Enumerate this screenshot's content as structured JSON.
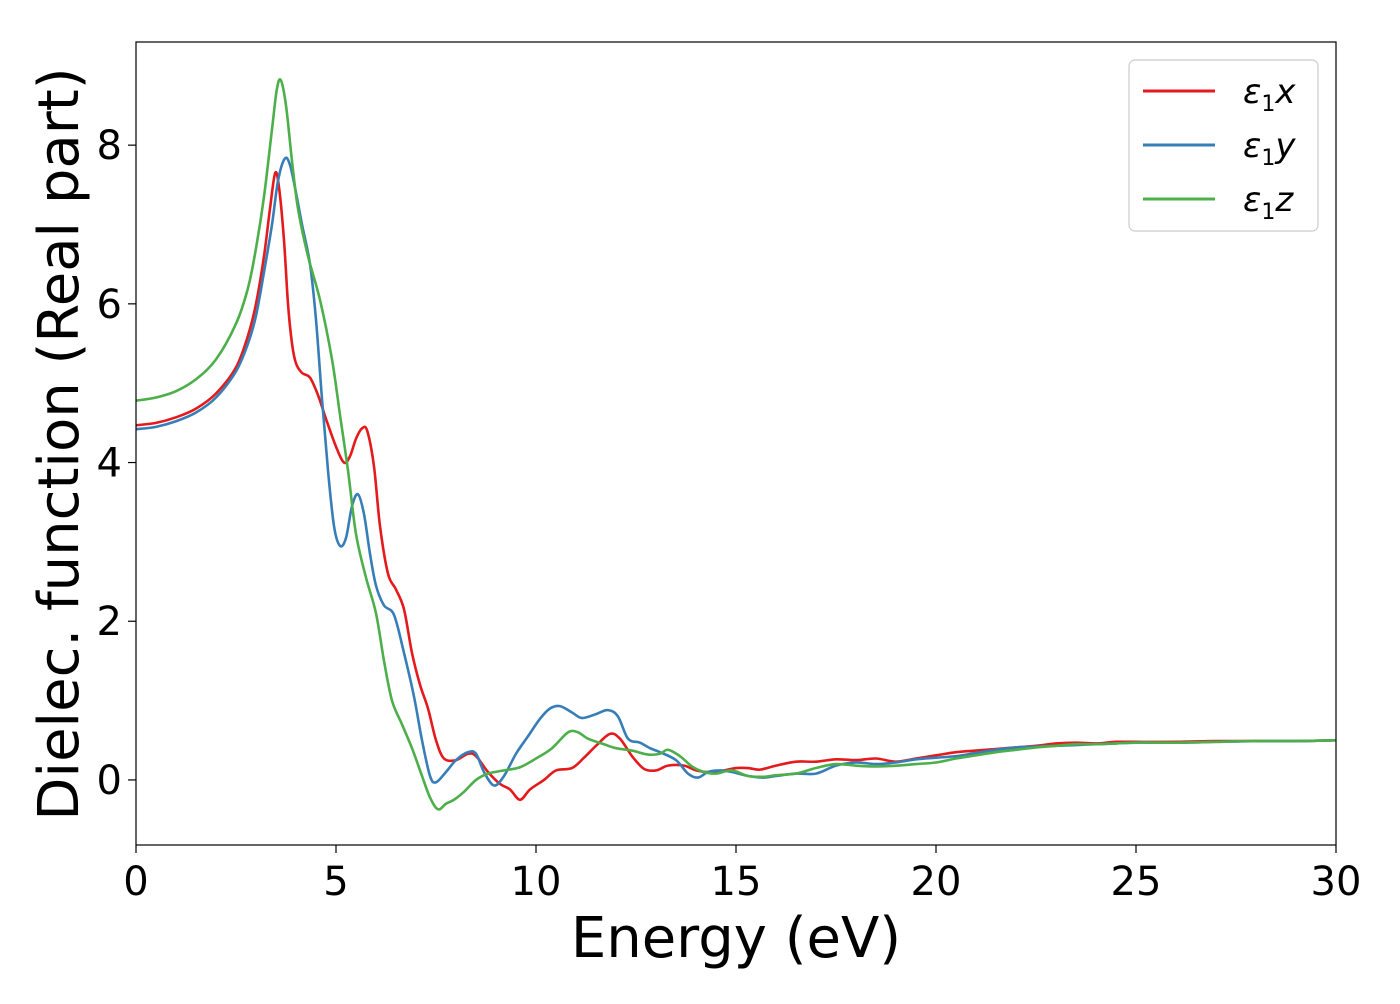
{
  "chart_data": {
    "type": "line",
    "title": "",
    "xlabel": "Energy (eV)",
    "ylabel": "Dielec. function (Real part)",
    "xlim": [
      0,
      30
    ],
    "ylim": [
      -0.82,
      9.3
    ],
    "xticks": [
      0,
      5,
      10,
      15,
      20,
      25,
      30
    ],
    "yticks": [
      0,
      2,
      4,
      6,
      8
    ],
    "grid": false,
    "legend_position": "top-right",
    "series": [
      {
        "name": "ε₁x",
        "label_main": "ε",
        "label_sub": "1",
        "label_suffix": "x",
        "color": "#e41a1c",
        "points": [
          [
            0,
            4.47
          ],
          [
            0.5,
            4.5
          ],
          [
            1.0,
            4.57
          ],
          [
            1.5,
            4.68
          ],
          [
            2.0,
            4.87
          ],
          [
            2.5,
            5.2
          ],
          [
            2.8,
            5.6
          ],
          [
            3.0,
            6.0
          ],
          [
            3.2,
            6.6
          ],
          [
            3.35,
            7.2
          ],
          [
            3.48,
            7.65
          ],
          [
            3.58,
            7.45
          ],
          [
            3.7,
            6.8
          ],
          [
            3.8,
            6.0
          ],
          [
            3.9,
            5.5
          ],
          [
            4.0,
            5.25
          ],
          [
            4.15,
            5.13
          ],
          [
            4.35,
            5.07
          ],
          [
            4.55,
            4.85
          ],
          [
            4.75,
            4.55
          ],
          [
            5.0,
            4.2
          ],
          [
            5.2,
            4.0
          ],
          [
            5.35,
            4.08
          ],
          [
            5.5,
            4.3
          ],
          [
            5.65,
            4.43
          ],
          [
            5.78,
            4.4
          ],
          [
            5.95,
            3.95
          ],
          [
            6.1,
            3.2
          ],
          [
            6.3,
            2.6
          ],
          [
            6.5,
            2.4
          ],
          [
            6.7,
            2.15
          ],
          [
            6.9,
            1.6
          ],
          [
            7.1,
            1.2
          ],
          [
            7.3,
            0.9
          ],
          [
            7.5,
            0.5
          ],
          [
            7.7,
            0.27
          ],
          [
            8.0,
            0.25
          ],
          [
            8.3,
            0.33
          ],
          [
            8.5,
            0.3
          ],
          [
            8.8,
            0.1
          ],
          [
            9.1,
            -0.05
          ],
          [
            9.35,
            -0.12
          ],
          [
            9.6,
            -0.25
          ],
          [
            9.85,
            -0.12
          ],
          [
            10.2,
            0.0
          ],
          [
            10.5,
            0.12
          ],
          [
            10.9,
            0.15
          ],
          [
            11.2,
            0.28
          ],
          [
            11.5,
            0.43
          ],
          [
            11.85,
            0.58
          ],
          [
            12.1,
            0.52
          ],
          [
            12.4,
            0.3
          ],
          [
            12.7,
            0.14
          ],
          [
            13.0,
            0.12
          ],
          [
            13.3,
            0.18
          ],
          [
            13.7,
            0.18
          ],
          [
            14.0,
            0.12
          ],
          [
            14.3,
            0.1
          ],
          [
            14.7,
            0.12
          ],
          [
            15.0,
            0.15
          ],
          [
            15.3,
            0.15
          ],
          [
            15.6,
            0.13
          ],
          [
            16.0,
            0.18
          ],
          [
            16.5,
            0.23
          ],
          [
            17.0,
            0.23
          ],
          [
            17.5,
            0.26
          ],
          [
            18.0,
            0.25
          ],
          [
            18.5,
            0.27
          ],
          [
            19.0,
            0.23
          ],
          [
            19.5,
            0.27
          ],
          [
            20.0,
            0.31
          ],
          [
            20.5,
            0.35
          ],
          [
            21.0,
            0.37
          ],
          [
            21.5,
            0.39
          ],
          [
            22.0,
            0.41
          ],
          [
            22.5,
            0.43
          ],
          [
            23.0,
            0.46
          ],
          [
            23.5,
            0.47
          ],
          [
            24.0,
            0.46
          ],
          [
            24.5,
            0.48
          ],
          [
            25.0,
            0.48
          ],
          [
            26.0,
            0.48
          ],
          [
            27.0,
            0.49
          ],
          [
            28.0,
            0.49
          ],
          [
            29.0,
            0.49
          ],
          [
            30.0,
            0.5
          ]
        ]
      },
      {
        "name": "ε₁y",
        "label_main": "ε",
        "label_sub": "1",
        "label_suffix": "y",
        "color": "#377eb8",
        "points": [
          [
            0,
            4.42
          ],
          [
            0.5,
            4.45
          ],
          [
            1.0,
            4.52
          ],
          [
            1.5,
            4.63
          ],
          [
            2.0,
            4.82
          ],
          [
            2.5,
            5.15
          ],
          [
            2.8,
            5.5
          ],
          [
            3.0,
            5.85
          ],
          [
            3.2,
            6.4
          ],
          [
            3.4,
            7.0
          ],
          [
            3.55,
            7.55
          ],
          [
            3.72,
            7.83
          ],
          [
            3.85,
            7.75
          ],
          [
            4.0,
            7.4
          ],
          [
            4.15,
            7.0
          ],
          [
            4.35,
            6.5
          ],
          [
            4.5,
            5.8
          ],
          [
            4.65,
            4.8
          ],
          [
            4.8,
            3.9
          ],
          [
            4.95,
            3.2
          ],
          [
            5.1,
            2.95
          ],
          [
            5.25,
            3.05
          ],
          [
            5.4,
            3.45
          ],
          [
            5.55,
            3.6
          ],
          [
            5.7,
            3.35
          ],
          [
            5.85,
            2.85
          ],
          [
            6.0,
            2.45
          ],
          [
            6.2,
            2.2
          ],
          [
            6.45,
            2.08
          ],
          [
            6.7,
            1.6
          ],
          [
            6.95,
            1.05
          ],
          [
            7.15,
            0.5
          ],
          [
            7.35,
            0.05
          ],
          [
            7.5,
            -0.03
          ],
          [
            7.75,
            0.1
          ],
          [
            8.0,
            0.25
          ],
          [
            8.3,
            0.35
          ],
          [
            8.5,
            0.33
          ],
          [
            8.7,
            0.1
          ],
          [
            8.95,
            -0.07
          ],
          [
            9.2,
            0.05
          ],
          [
            9.5,
            0.33
          ],
          [
            9.8,
            0.55
          ],
          [
            10.1,
            0.77
          ],
          [
            10.35,
            0.9
          ],
          [
            10.6,
            0.93
          ],
          [
            10.9,
            0.85
          ],
          [
            11.15,
            0.78
          ],
          [
            11.5,
            0.83
          ],
          [
            11.8,
            0.88
          ],
          [
            12.05,
            0.8
          ],
          [
            12.3,
            0.52
          ],
          [
            12.6,
            0.47
          ],
          [
            12.85,
            0.4
          ],
          [
            13.1,
            0.35
          ],
          [
            13.5,
            0.25
          ],
          [
            13.8,
            0.08
          ],
          [
            14.05,
            0.03
          ],
          [
            14.3,
            0.1
          ],
          [
            14.6,
            0.12
          ],
          [
            14.9,
            0.1
          ],
          [
            15.3,
            0.05
          ],
          [
            15.7,
            0.03
          ],
          [
            16.0,
            0.05
          ],
          [
            16.5,
            0.08
          ],
          [
            17.0,
            0.08
          ],
          [
            17.5,
            0.18
          ],
          [
            18.0,
            0.22
          ],
          [
            18.5,
            0.2
          ],
          [
            19.0,
            0.22
          ],
          [
            19.5,
            0.26
          ],
          [
            20.0,
            0.28
          ],
          [
            20.5,
            0.3
          ],
          [
            21.0,
            0.34
          ],
          [
            21.5,
            0.38
          ],
          [
            22.0,
            0.41
          ],
          [
            22.5,
            0.42
          ],
          [
            23.0,
            0.43
          ],
          [
            23.5,
            0.44
          ],
          [
            24.0,
            0.45
          ],
          [
            24.5,
            0.46
          ],
          [
            25.0,
            0.47
          ],
          [
            26.0,
            0.47
          ],
          [
            27.0,
            0.48
          ],
          [
            28.0,
            0.49
          ],
          [
            29.0,
            0.49
          ],
          [
            30.0,
            0.5
          ]
        ]
      },
      {
        "name": "ε₁z",
        "label_main": "ε",
        "label_sub": "1",
        "label_suffix": "z",
        "color": "#4daf4a",
        "points": [
          [
            0,
            4.78
          ],
          [
            0.5,
            4.82
          ],
          [
            1.0,
            4.9
          ],
          [
            1.5,
            5.05
          ],
          [
            2.0,
            5.3
          ],
          [
            2.5,
            5.75
          ],
          [
            2.8,
            6.2
          ],
          [
            3.0,
            6.7
          ],
          [
            3.2,
            7.35
          ],
          [
            3.4,
            8.2
          ],
          [
            3.52,
            8.7
          ],
          [
            3.62,
            8.82
          ],
          [
            3.75,
            8.5
          ],
          [
            3.9,
            7.8
          ],
          [
            4.05,
            7.2
          ],
          [
            4.3,
            6.6
          ],
          [
            4.6,
            6.05
          ],
          [
            4.9,
            5.3
          ],
          [
            5.1,
            4.6
          ],
          [
            5.3,
            3.9
          ],
          [
            5.5,
            3.1
          ],
          [
            5.75,
            2.55
          ],
          [
            6.0,
            2.1
          ],
          [
            6.2,
            1.5
          ],
          [
            6.4,
            1.0
          ],
          [
            6.65,
            0.7
          ],
          [
            6.9,
            0.4
          ],
          [
            7.15,
            0.05
          ],
          [
            7.35,
            -0.22
          ],
          [
            7.55,
            -0.37
          ],
          [
            7.75,
            -0.3
          ],
          [
            7.95,
            -0.25
          ],
          [
            8.2,
            -0.15
          ],
          [
            8.5,
            0.0
          ],
          [
            8.8,
            0.08
          ],
          [
            9.2,
            0.12
          ],
          [
            9.6,
            0.16
          ],
          [
            10.0,
            0.27
          ],
          [
            10.4,
            0.4
          ],
          [
            10.8,
            0.6
          ],
          [
            11.05,
            0.6
          ],
          [
            11.3,
            0.52
          ],
          [
            11.7,
            0.45
          ],
          [
            12.0,
            0.4
          ],
          [
            12.4,
            0.37
          ],
          [
            12.8,
            0.32
          ],
          [
            13.1,
            0.33
          ],
          [
            13.3,
            0.38
          ],
          [
            13.6,
            0.3
          ],
          [
            13.9,
            0.17
          ],
          [
            14.2,
            0.1
          ],
          [
            14.5,
            0.08
          ],
          [
            14.9,
            0.12
          ],
          [
            15.3,
            0.05
          ],
          [
            15.7,
            0.04
          ],
          [
            16.0,
            0.06
          ],
          [
            16.5,
            0.08
          ],
          [
            17.0,
            0.15
          ],
          [
            17.5,
            0.2
          ],
          [
            18.0,
            0.18
          ],
          [
            18.5,
            0.17
          ],
          [
            19.0,
            0.18
          ],
          [
            19.5,
            0.2
          ],
          [
            20.0,
            0.22
          ],
          [
            20.5,
            0.27
          ],
          [
            21.0,
            0.31
          ],
          [
            21.5,
            0.35
          ],
          [
            22.0,
            0.38
          ],
          [
            22.5,
            0.41
          ],
          [
            23.0,
            0.43
          ],
          [
            23.5,
            0.45
          ],
          [
            24.0,
            0.45
          ],
          [
            24.5,
            0.46
          ],
          [
            25.0,
            0.47
          ],
          [
            26.0,
            0.47
          ],
          [
            27.0,
            0.48
          ],
          [
            28.0,
            0.49
          ],
          [
            29.0,
            0.49
          ],
          [
            30.0,
            0.5
          ]
        ]
      }
    ]
  }
}
